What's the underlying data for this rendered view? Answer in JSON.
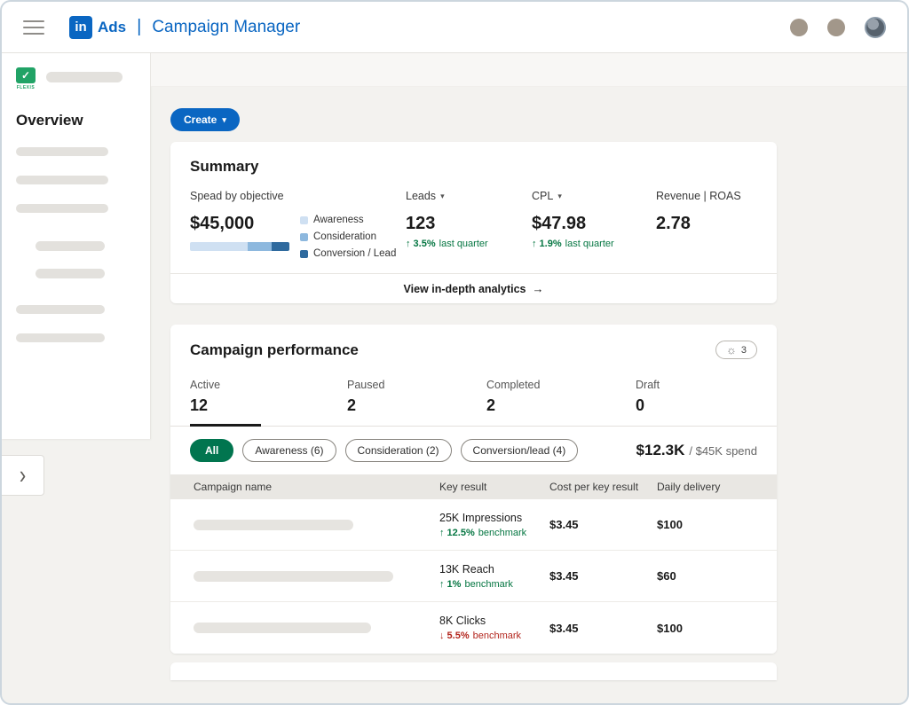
{
  "colors": {
    "accent": "#0a66c2",
    "positive": "#057642",
    "negative": "#b3261e",
    "all_pill_green": "#01754f",
    "background": "#f3f2ef"
  },
  "header": {
    "logo": "in",
    "brand": "Ads",
    "separator": "|",
    "title": "Campaign Manager"
  },
  "sidebar": {
    "logo_caption": "FLEXIS",
    "logo_check": "✓",
    "overview": "Overview",
    "expand_icon": "›"
  },
  "content": {
    "create_button": "Create",
    "create_caret": "▾"
  },
  "summary": {
    "title": "Summary",
    "spend_header": "Spead by objective",
    "leads_header": "Leads",
    "cpl_header": "CPL",
    "revenue_header": "Revenue | ROAS",
    "sort_caret": "▾",
    "spend_value": "$45,000",
    "legend": [
      {
        "label": "Awareness",
        "color": "#cfe0f2"
      },
      {
        "label": "Consideration",
        "color": "#8db8de"
      },
      {
        "label": "Conversion / Lead",
        "color": "#2f6a9e"
      }
    ],
    "bar_segments": [
      {
        "color": "#cfe0f2"
      },
      {
        "color": "#8db8de"
      },
      {
        "color": "#2f6a9e"
      }
    ],
    "leads_value": "123",
    "leads_delta": "↑ 3.5%",
    "leads_delta_note": "last quarter",
    "cpl_value": "$47.98",
    "cpl_delta": "↑ 1.9%",
    "cpl_delta_note": "last quarter",
    "revenue_value": "2.78",
    "analytics_link": "View in-depth analytics",
    "analytics_arrow": "→"
  },
  "performance": {
    "title": "Campaign performance",
    "insights_icon": "☼",
    "insights_count": "3",
    "tabs": [
      {
        "label": "Active",
        "count": "12"
      },
      {
        "label": "Paused",
        "count": "2"
      },
      {
        "label": "Completed",
        "count": "2"
      },
      {
        "label": "Draft",
        "count": "0"
      }
    ],
    "filters": [
      {
        "label": "All"
      },
      {
        "label": "Awareness (6)"
      },
      {
        "label": "Consideration (2)"
      },
      {
        "label": "Conversion/lead (4)"
      }
    ],
    "spend_current": "$12.3K",
    "spend_total": "/ $45K spend",
    "table": {
      "headers": [
        "Campaign name",
        "Key result",
        "Cost per key result",
        "Daily delivery"
      ],
      "rows": [
        {
          "key_result": "25K Impressions",
          "trend": "↑ 12.5%",
          "trend_label": "benchmark",
          "direction": "up",
          "cost": "$3.45",
          "delivery": "$100"
        },
        {
          "key_result": "13K Reach",
          "trend": "↑ 1%",
          "trend_label": "benchmark",
          "direction": "up",
          "cost": "$3.45",
          "delivery": "$60"
        },
        {
          "key_result": "8K Clicks",
          "trend": "↓ 5.5%",
          "trend_label": "benchmark",
          "direction": "down",
          "cost": "$3.45",
          "delivery": "$100"
        }
      ]
    }
  }
}
